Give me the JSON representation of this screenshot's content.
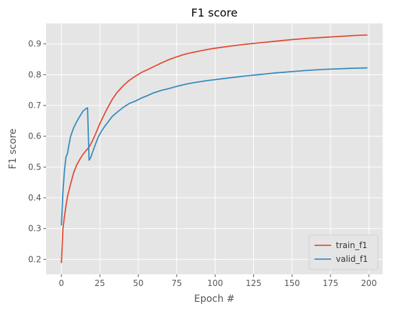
{
  "chart_data": {
    "type": "line",
    "title": "F1 score",
    "xlabel": "Epoch #",
    "ylabel": "F1 score",
    "xlim": [
      -9.95,
      208.95
    ],
    "ylim": [
      0.1515,
      0.9665
    ],
    "xticks": [
      0,
      25,
      50,
      75,
      100,
      125,
      150,
      175,
      200
    ],
    "yticks": [
      0.2,
      0.3,
      0.4,
      0.5,
      0.6,
      0.7,
      0.8,
      0.9
    ],
    "grid": true,
    "style": "ggplot",
    "legend_position": "lower-right",
    "series": [
      {
        "name": "train_f1",
        "color": "#E24A33",
        "x": [
          0,
          1,
          2,
          3,
          4,
          6,
          8,
          10,
          12,
          14,
          16,
          18,
          20,
          22,
          25,
          28,
          30,
          33,
          36,
          40,
          44,
          48,
          52,
          56,
          60,
          65,
          70,
          75,
          80,
          85,
          90,
          95,
          100,
          110,
          120,
          130,
          140,
          150,
          160,
          170,
          180,
          190,
          199
        ],
        "y": [
          0.188,
          0.3,
          0.34,
          0.375,
          0.405,
          0.445,
          0.482,
          0.507,
          0.525,
          0.541,
          0.553,
          0.565,
          0.583,
          0.605,
          0.641,
          0.672,
          0.692,
          0.719,
          0.741,
          0.763,
          0.781,
          0.795,
          0.807,
          0.816,
          0.826,
          0.838,
          0.849,
          0.858,
          0.866,
          0.872,
          0.877,
          0.882,
          0.886,
          0.893,
          0.899,
          0.904,
          0.909,
          0.914,
          0.918,
          0.921,
          0.924,
          0.927,
          0.929
        ]
      },
      {
        "name": "valid_f1",
        "color": "#348ABD",
        "x": [
          0,
          1,
          2,
          3,
          4,
          5,
          6,
          8,
          10,
          12,
          14,
          16,
          17,
          18,
          19,
          20,
          22,
          24,
          26,
          28,
          30,
          33,
          36,
          40,
          44,
          48,
          52,
          56,
          60,
          65,
          70,
          75,
          80,
          85,
          90,
          95,
          100,
          110,
          120,
          130,
          140,
          150,
          160,
          170,
          180,
          190,
          199
        ],
        "y": [
          0.31,
          0.42,
          0.49,
          0.533,
          0.545,
          0.575,
          0.6,
          0.628,
          0.648,
          0.665,
          0.681,
          0.69,
          0.692,
          0.522,
          0.53,
          0.545,
          0.572,
          0.598,
          0.616,
          0.631,
          0.644,
          0.664,
          0.677,
          0.693,
          0.706,
          0.714,
          0.724,
          0.732,
          0.741,
          0.749,
          0.755,
          0.762,
          0.768,
          0.773,
          0.777,
          0.781,
          0.784,
          0.79,
          0.796,
          0.801,
          0.806,
          0.81,
          0.814,
          0.817,
          0.819,
          0.821,
          0.822
        ]
      }
    ]
  }
}
